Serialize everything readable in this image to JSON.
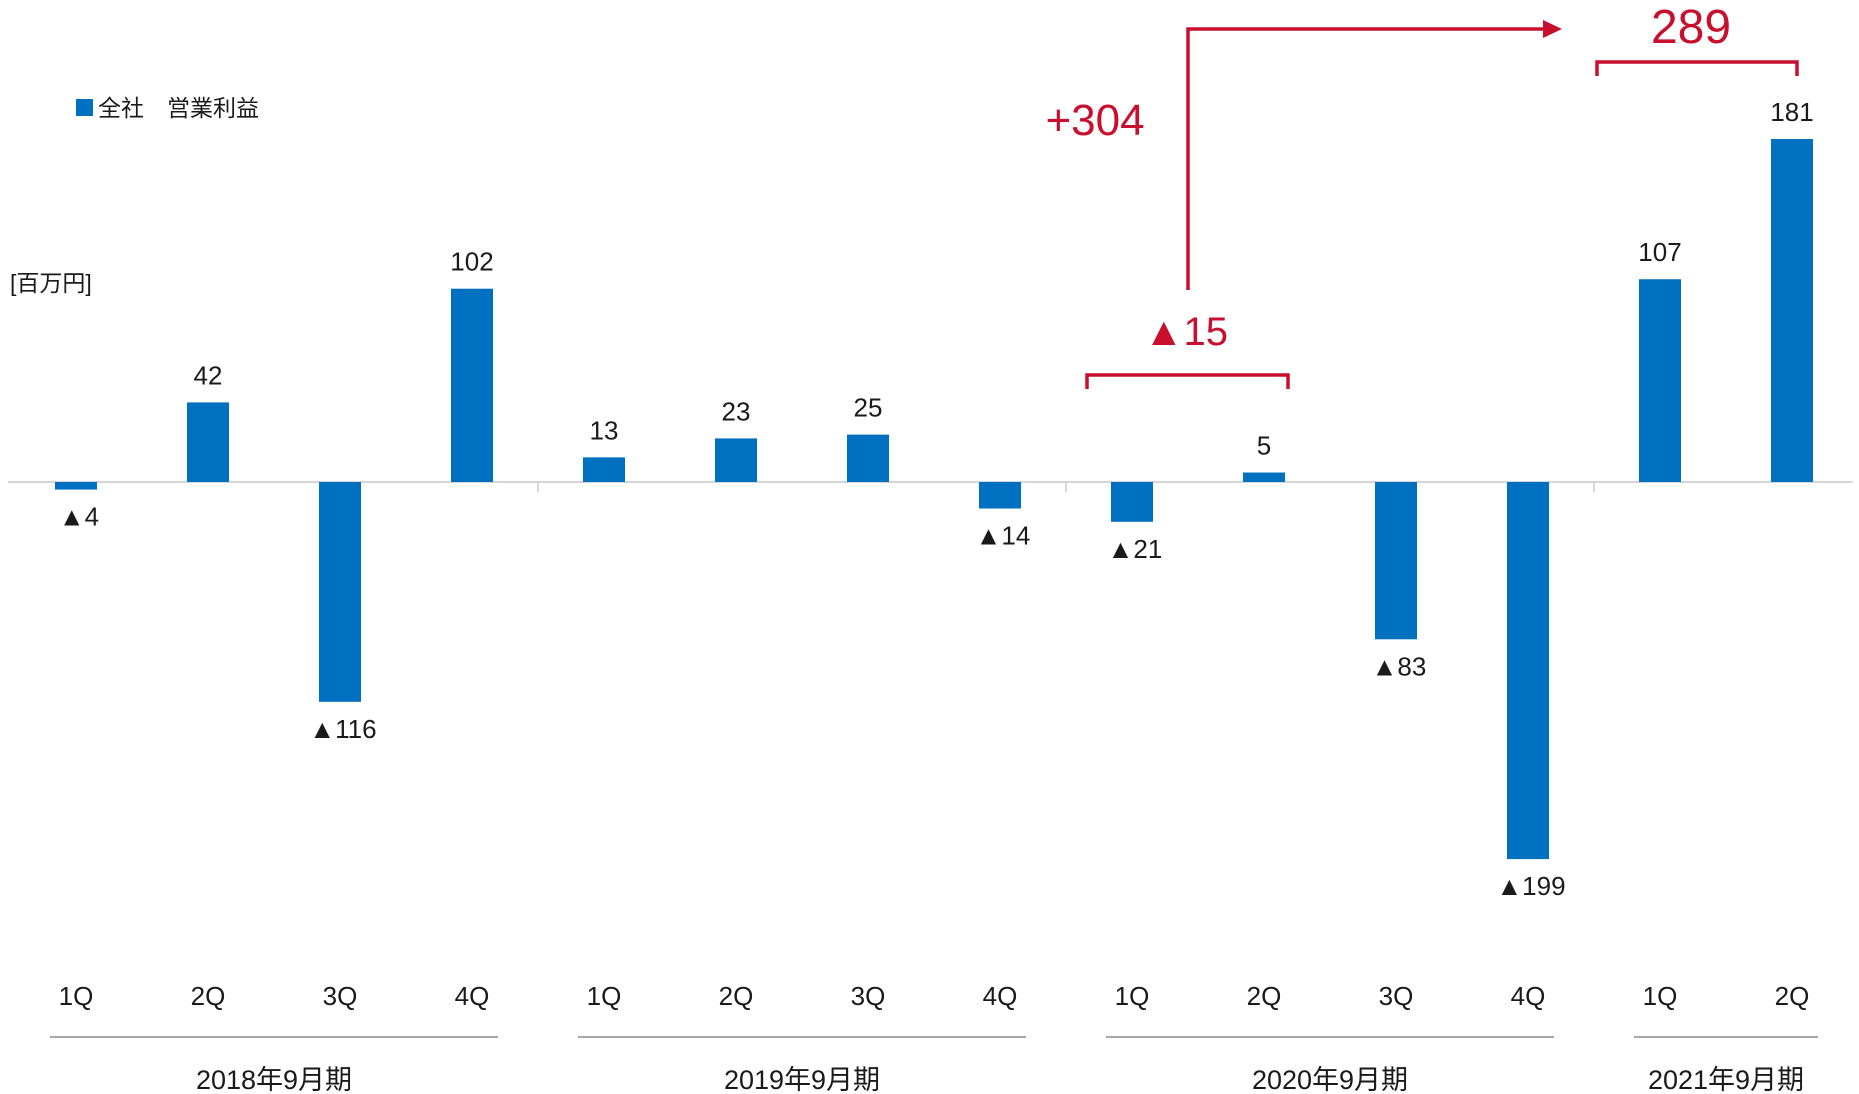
{
  "chart_data": {
    "type": "bar",
    "legend": "全社　営業利益",
    "unit_label": "[百万円]",
    "series": [
      {
        "name": "全社　営業利益",
        "color": "#0070c0",
        "values": [
          -4,
          42,
          -116,
          102,
          13,
          23,
          25,
          -14,
          -21,
          5,
          -83,
          -199,
          107,
          181
        ],
        "labels": [
          "▲4",
          "42",
          "▲116",
          "102",
          "13",
          "23",
          "25",
          "▲14",
          "▲21",
          "5",
          "▲83",
          "▲199",
          "107",
          "181"
        ]
      }
    ],
    "categories": [
      "1Q",
      "2Q",
      "3Q",
      "4Q",
      "1Q",
      "2Q",
      "3Q",
      "4Q",
      "1Q",
      "2Q",
      "3Q",
      "4Q",
      "1Q",
      "2Q"
    ],
    "periods": [
      {
        "label": "2018年9月期",
        "count": 4
      },
      {
        "label": "2019年9月期",
        "count": 4
      },
      {
        "label": "2020年9月期",
        "count": 4
      },
      {
        "label": "2021年9月期",
        "count": 2
      }
    ],
    "ylim": [
      -240,
      200
    ],
    "annotations": {
      "h1_2020_total": "▲15",
      "h1_2021_total": "289",
      "change": "+304",
      "color": "#c8102e"
    }
  }
}
